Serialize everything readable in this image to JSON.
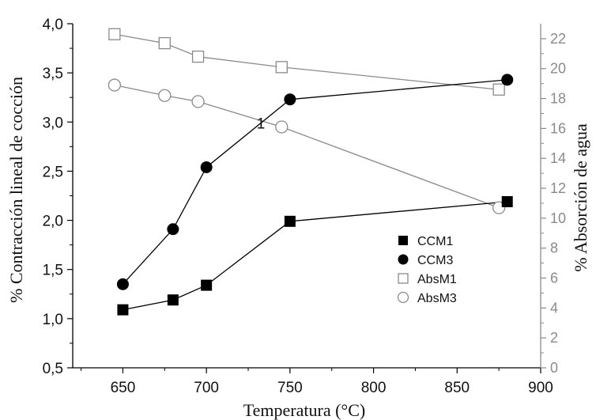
{
  "chart_data": {
    "type": "line",
    "xlabel": "Temperatura (°C)",
    "ylabel_left": "% Contracción lineal de cocción",
    "ylabel_right": "% Absorción de agua",
    "xlim": [
      620,
      900
    ],
    "ylim_left": [
      0.5,
      4.0
    ],
    "ylim_right": [
      0,
      23
    ],
    "x_ticks": [
      650,
      700,
      750,
      800,
      850,
      900
    ],
    "x_tick_labels": [
      "650",
      "700",
      "750",
      "800",
      "850",
      "900"
    ],
    "y_left_ticks": [
      0.5,
      1.0,
      1.5,
      2.0,
      2.5,
      3.0,
      3.5,
      4.0
    ],
    "y_left_tick_labels": [
      "0,5",
      "1,0",
      "1,5",
      "2,0",
      "2,5",
      "3,0",
      "3,5",
      "4,0"
    ],
    "y_right_ticks": [
      0,
      2,
      4,
      6,
      8,
      10,
      12,
      14,
      16,
      18,
      20,
      22
    ],
    "y_right_tick_labels": [
      "0",
      "2",
      "4",
      "6",
      "8",
      "10",
      "12",
      "14",
      "16",
      "18",
      "20",
      "22"
    ],
    "legend_position": "lower-right",
    "series": [
      {
        "name": "CCM1",
        "axis": "left",
        "marker": "filled-square",
        "x": [
          650,
          680,
          700,
          750,
          880
        ],
        "y": [
          1.09,
          1.19,
          1.34,
          1.99,
          2.19
        ]
      },
      {
        "name": "CCM3",
        "axis": "left",
        "marker": "filled-circle",
        "x": [
          650,
          680,
          700,
          750,
          880
        ],
        "y": [
          1.35,
          1.91,
          2.54,
          3.23,
          3.43
        ]
      },
      {
        "name": "AbsM1",
        "axis": "right",
        "marker": "open-square",
        "x": [
          645,
          675,
          695,
          745,
          875
        ],
        "y": [
          22.3,
          21.7,
          20.8,
          20.1,
          18.6
        ]
      },
      {
        "name": "AbsM3",
        "axis": "right",
        "marker": "open-circle",
        "x": [
          645,
          675,
          695,
          745,
          875
        ],
        "y": [
          18.9,
          18.2,
          17.8,
          16.1,
          10.7
        ]
      }
    ],
    "annotations": [
      {
        "text": "1",
        "x": 732,
        "y_left": 3.0
      }
    ],
    "colors": {
      "left_series": "#000000",
      "right_series": "#8a8a8a",
      "right_axis": "#8a8a8a"
    }
  }
}
